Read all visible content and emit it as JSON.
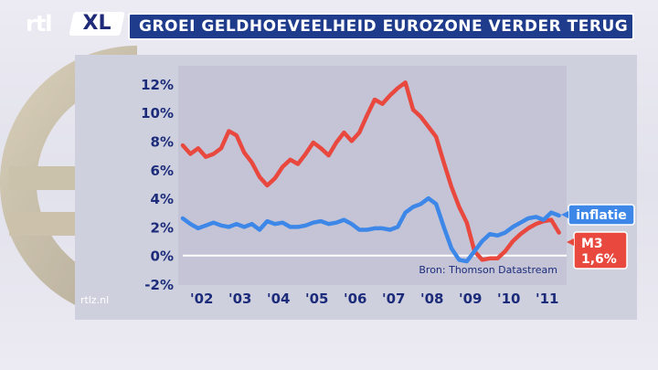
{
  "header": {
    "logo_rtl": "rtl",
    "logo_xl": "XL",
    "title": "GROEI GELDHOEVEELHEID EUROZONE VERDER TERUG"
  },
  "footer": {
    "site": "rtlz.nl"
  },
  "colors": {
    "background": "#e6e6ee",
    "plot_background": "#c6c6d8",
    "title_bar": "#1f3c8c",
    "m3_line": "#e8483e",
    "inflatie_line": "#3d87e8",
    "zero_line": "#ffffff",
    "label_text": "#1c2c7a"
  },
  "chart_data": {
    "type": "line",
    "title": "GROEI GELDHOEVEELHEID EUROZONE VERDER TERUG",
    "source": "Bron: Thomson Datastream",
    "ylim": [
      -2,
      12.5
    ],
    "xlim": [
      2002.0,
      2012.0
    ],
    "yticks": [
      12,
      10,
      8,
      6,
      4,
      2,
      0,
      -2
    ],
    "ytick_labels": [
      "12%",
      "10%",
      "8%",
      "6%",
      "4%",
      "2%",
      "0%",
      "-2%"
    ],
    "xticks": [
      2002,
      2003,
      2004,
      2005,
      2006,
      2007,
      2008,
      2009,
      2010,
      2011
    ],
    "xtick_labels": [
      "'02",
      "'03",
      "'04",
      "'05",
      "'06",
      "'07",
      "'08",
      "'09",
      "'10",
      "'11"
    ],
    "series": [
      {
        "name": "M3",
        "label": "M3",
        "value_label": "1,6%",
        "color": "#e8483e",
        "x": [
          2002.0,
          2002.2,
          2002.4,
          2002.6,
          2002.8,
          2003.0,
          2003.2,
          2003.4,
          2003.6,
          2003.8,
          2004.0,
          2004.2,
          2004.4,
          2004.6,
          2004.8,
          2005.0,
          2005.2,
          2005.4,
          2005.6,
          2005.8,
          2006.0,
          2006.2,
          2006.4,
          2006.6,
          2006.8,
          2007.0,
          2007.2,
          2007.4,
          2007.6,
          2007.8,
          2008.0,
          2008.2,
          2008.4,
          2008.6,
          2008.8,
          2009.0,
          2009.2,
          2009.4,
          2009.6,
          2009.8,
          2010.0,
          2010.2,
          2010.4,
          2010.6,
          2010.8,
          2011.0,
          2011.2,
          2011.4,
          2011.6,
          2011.8
        ],
        "y": [
          7.7,
          7.1,
          7.5,
          6.9,
          7.1,
          7.5,
          8.7,
          8.4,
          7.2,
          6.5,
          5.5,
          4.9,
          5.4,
          6.2,
          6.7,
          6.4,
          7.1,
          7.9,
          7.5,
          7.0,
          7.9,
          8.6,
          8.0,
          8.6,
          9.8,
          10.9,
          10.6,
          11.2,
          11.7,
          12.1,
          10.2,
          9.7,
          9.0,
          8.3,
          6.5,
          4.8,
          3.4,
          2.3,
          0.3,
          -0.3,
          -0.2,
          -0.2,
          0.3,
          1.0,
          1.5,
          1.9,
          2.2,
          2.4,
          2.5,
          1.6
        ]
      },
      {
        "name": "inflatie",
        "label": "inflatie",
        "color": "#3d87e8",
        "x": [
          2002.0,
          2002.2,
          2002.4,
          2002.6,
          2002.8,
          2003.0,
          2003.2,
          2003.4,
          2003.6,
          2003.8,
          2004.0,
          2004.2,
          2004.4,
          2004.6,
          2004.8,
          2005.0,
          2005.2,
          2005.4,
          2005.6,
          2005.8,
          2006.0,
          2006.2,
          2006.4,
          2006.6,
          2006.8,
          2007.0,
          2007.2,
          2007.4,
          2007.6,
          2007.8,
          2008.0,
          2008.2,
          2008.4,
          2008.6,
          2008.8,
          2009.0,
          2009.2,
          2009.4,
          2009.6,
          2009.8,
          2010.0,
          2010.2,
          2010.4,
          2010.6,
          2010.8,
          2011.0,
          2011.2,
          2011.4,
          2011.6,
          2011.8
        ],
        "y": [
          2.6,
          2.2,
          1.9,
          2.1,
          2.3,
          2.1,
          2.0,
          2.2,
          2.0,
          2.2,
          1.8,
          2.4,
          2.2,
          2.3,
          2.0,
          2.0,
          2.1,
          2.3,
          2.4,
          2.2,
          2.3,
          2.5,
          2.2,
          1.8,
          1.8,
          1.9,
          1.9,
          1.8,
          2.0,
          3.0,
          3.4,
          3.6,
          4.0,
          3.6,
          2.0,
          0.5,
          -0.3,
          -0.4,
          0.3,
          1.0,
          1.5,
          1.4,
          1.6,
          2.0,
          2.3,
          2.6,
          2.7,
          2.5,
          3.0,
          2.8
        ]
      }
    ]
  }
}
